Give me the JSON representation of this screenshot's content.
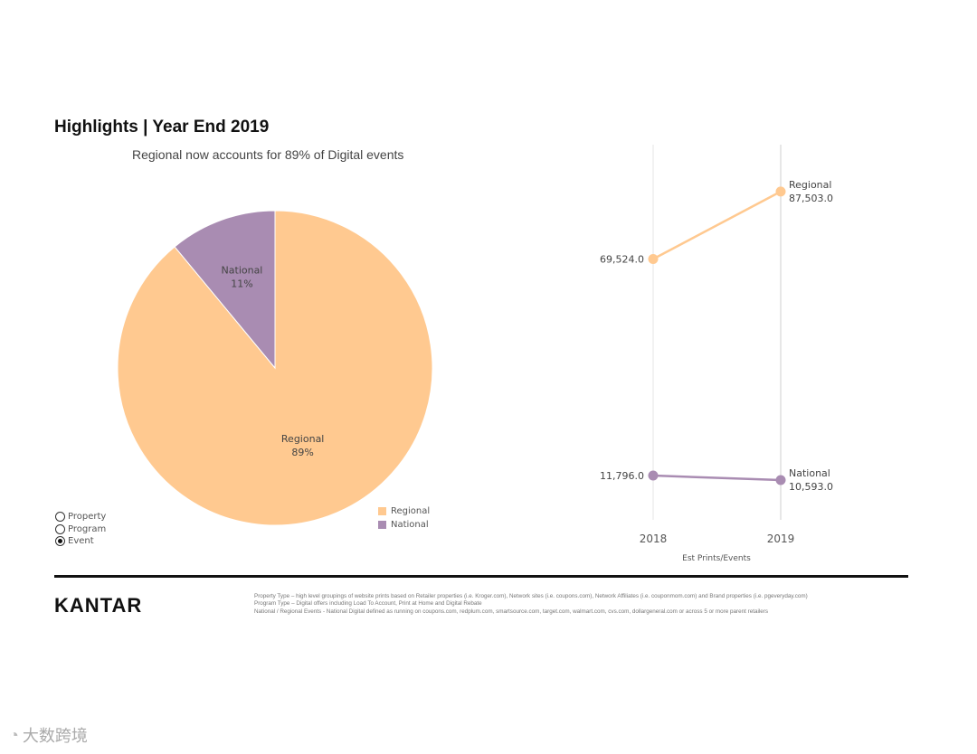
{
  "header": {
    "title": "Highlights | Year End 2019"
  },
  "pie": {
    "subtitle": "Regional now accounts for 89% of Digital events"
  },
  "legend": {
    "items": [
      {
        "label": "Regional",
        "color": "#FFC990"
      },
      {
        "label": "National",
        "color": "#A98CB2"
      }
    ]
  },
  "radio_options": {
    "items": [
      {
        "label": "Property",
        "checked": false
      },
      {
        "label": "Program",
        "checked": false
      },
      {
        "label": "Event",
        "checked": true
      }
    ]
  },
  "chart_data": [
    {
      "type": "pie",
      "title": "Regional now accounts for 89% of Digital events",
      "slices": [
        {
          "label": "Regional",
          "value": 89,
          "value_label": "89%",
          "color": "#FFC990"
        },
        {
          "label": "National",
          "value": 11,
          "value_label": "11%",
          "color": "#A98CB2"
        }
      ]
    },
    {
      "type": "line",
      "x": [
        "2018",
        "2019"
      ],
      "xlabel": "Est Prints/Events",
      "ylim": [
        0,
        100000
      ],
      "series": [
        {
          "name": "Regional",
          "values": [
            69524.0,
            87503.0
          ],
          "value_labels": [
            "69,524.0",
            "87,503.0"
          ],
          "color": "#FFC990"
        },
        {
          "name": "National",
          "values": [
            11796.0,
            10593.0
          ],
          "value_labels": [
            "11,796.0",
            "10,593.0"
          ],
          "color": "#A98CB2"
        }
      ]
    }
  ],
  "footer": {
    "brand": "KANTAR",
    "notes": [
      "Property Type – high level groupings of website prints based on Retailer properties (i.e. Kroger.com), Network sites (i.e. coupons.com), Network Affiliates (i.e. couponmom.com) and Brand properties (i.e. pgeveryday.com)",
      "Program Type – Digital offers including Load To Account, Print at Home and Digital Rebate",
      "National / Regional Events - National Digital defined as running on coupons.com, redplum.com, smartsource.com, target.com, walmart.com, cvs.com, dollargeneral.com or across 5 or more parent retailers"
    ]
  },
  "watermark": {
    "text": "大数跨境"
  }
}
